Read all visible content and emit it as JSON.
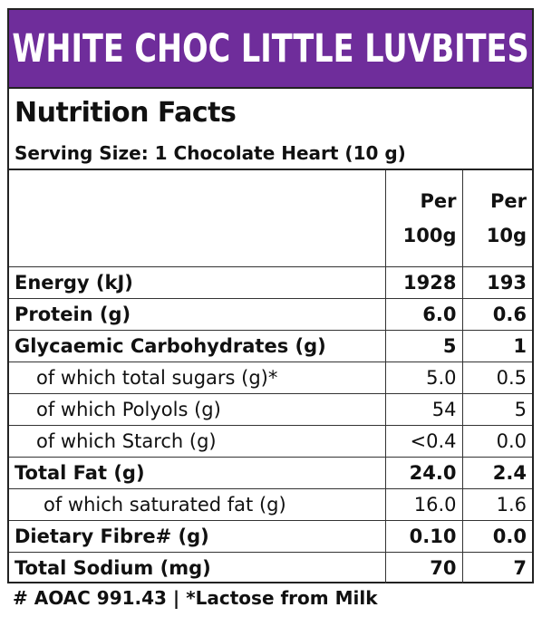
{
  "banner": {
    "title": "WHITE CHOC LITTLE LUVBITES",
    "bg_color": "#6f2d9b"
  },
  "nutrition": {
    "title": "Nutrition Facts",
    "serving_size": "Serving Size: 1 Chocolate Heart (10 g)",
    "columns": [
      "Per 100g",
      "Per 10g"
    ],
    "rows": [
      {
        "label": "Energy (kJ)",
        "per100": "1928",
        "per10": "193"
      },
      {
        "label": "Protein (g)",
        "per100": "6.0",
        "per10": "0.6"
      },
      {
        "label": "Glycaemic Carbohydrates (g)",
        "per100": "5",
        "per10": "1"
      },
      {
        "label": "of which total sugars (g)*",
        "per100": "5.0",
        "per10": "0.5"
      },
      {
        "label": "of which Polyols (g)",
        "per100": "54",
        "per10": "5"
      },
      {
        "label": "of which Starch (g)",
        "per100": "<0.4",
        "per10": "0.0"
      },
      {
        "label": "Total Fat (g)",
        "per100": "24.0",
        "per10": "2.4"
      },
      {
        "label": "of which saturated fat (g)",
        "per100": "16.0",
        "per10": "1.6"
      },
      {
        "label": "Dietary Fibre# (g)",
        "per100": "0.10",
        "per10": "0.0"
      },
      {
        "label": "Total Sodium (mg)",
        "per100": "70",
        "per10": "7"
      }
    ]
  },
  "footnote": "# AOAC 991.43 | *Lactose from Milk"
}
